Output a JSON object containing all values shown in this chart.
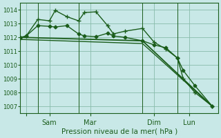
{
  "bg_color": "#c8e8e8",
  "grid_color": "#88bbaa",
  "line_color": "#1a5c1a",
  "xlabel": "Pression niveau de la mer( hPa )",
  "ylim": [
    1006.5,
    1014.5
  ],
  "yticks": [
    1007,
    1008,
    1009,
    1010,
    1011,
    1012,
    1013,
    1014
  ],
  "xlim": [
    0,
    17
  ],
  "xtick_positions": [
    0.5,
    2.5,
    6.0,
    11.5,
    14.5
  ],
  "xtick_labels": [
    "",
    "Sam",
    "Mar",
    "Dim",
    "Lun"
  ],
  "vlines": [
    1.5,
    5.0,
    10.5,
    13.5
  ],
  "series": [
    {
      "x": [
        0,
        0.5,
        1.5,
        2.5,
        3.0,
        4.0,
        5.0,
        5.5,
        6.5,
        7.5,
        8.0,
        9.0,
        10.5,
        11.5,
        12.5,
        13.5,
        14.0,
        15.0,
        16.5
      ],
      "y": [
        1011.9,
        1012.1,
        1013.3,
        1013.2,
        1013.95,
        1013.5,
        1013.2,
        1013.8,
        1013.85,
        1012.85,
        1012.25,
        1012.45,
        1012.65,
        1011.65,
        1011.15,
        1010.5,
        1009.0,
        1008.0,
        1007.0
      ],
      "marker": "+",
      "lw": 1.0,
      "ms": 5
    },
    {
      "x": [
        0,
        0.5,
        1.5,
        2.5,
        3.0,
        4.0,
        5.0,
        5.5,
        6.5,
        7.5,
        8.0,
        9.0,
        10.5,
        11.5,
        12.5,
        13.5,
        14.0,
        15.0,
        16.5
      ],
      "y": [
        1012.0,
        1012.1,
        1012.85,
        1012.8,
        1012.75,
        1012.85,
        1012.25,
        1012.1,
        1012.05,
        1012.3,
        1012.1,
        1012.0,
        1011.75,
        1011.45,
        1011.25,
        1010.5,
        1009.6,
        1008.5,
        1007.0
      ],
      "marker": "D",
      "lw": 1.0,
      "ms": 2.5
    },
    {
      "x": [
        0,
        10.5,
        16.5
      ],
      "y": [
        1012.0,
        1011.75,
        1007.0
      ],
      "marker": "None",
      "lw": 1.3,
      "ms": 0
    },
    {
      "x": [
        0,
        10.5,
        16.5
      ],
      "y": [
        1011.85,
        1011.55,
        1007.0
      ],
      "marker": "None",
      "lw": 1.0,
      "ms": 0
    }
  ]
}
